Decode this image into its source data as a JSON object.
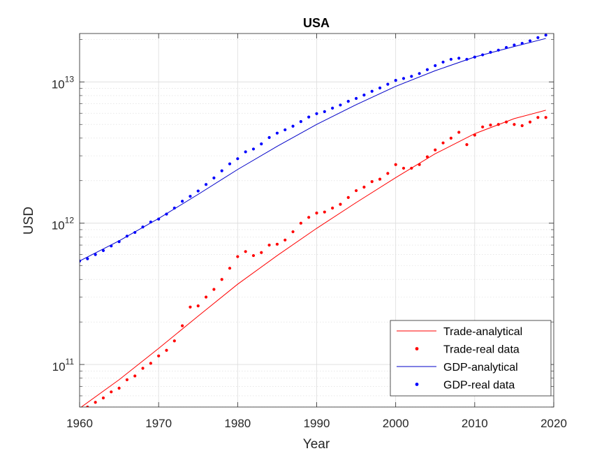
{
  "chart_data": {
    "type": "line",
    "title": "USA",
    "xlabel": "Year",
    "ylabel": "USD",
    "xlim": [
      1960,
      2020
    ],
    "ylim": [
      50000000000,
      22000000000000
    ],
    "yscale": "log",
    "grid": true,
    "minor_grid": true,
    "xticks": [
      1960,
      1970,
      1980,
      1990,
      2000,
      2010,
      2020
    ],
    "yticks": [
      {
        "value": 100000000000,
        "base": "10",
        "exp": "11"
      },
      {
        "value": 1000000000000,
        "base": "10",
        "exp": "12"
      },
      {
        "value": 10000000000000,
        "base": "10",
        "exp": "13"
      }
    ],
    "legend_position": "bottom-right",
    "series": [
      {
        "name": "Trade-analytical",
        "kind": "line",
        "color": "#ff0000",
        "x": [
          1960,
          1965,
          1970,
          1975,
          1980,
          1985,
          1990,
          1995,
          2000,
          2005,
          2010,
          2015,
          2019
        ],
        "y": [
          49000000000.0,
          78000000000.0,
          130000000000.0,
          220000000000.0,
          370000000000.0,
          590000000000.0,
          920000000000.0,
          1400000000000.0,
          2100000000000.0,
          3100000000000.0,
          4300000000000.0,
          5500000000000.0,
          6300000000000.0
        ]
      },
      {
        "name": "Trade-real data",
        "kind": "points",
        "color": "#ff0000",
        "x": [
          1960,
          1961,
          1962,
          1963,
          1964,
          1965,
          1966,
          1967,
          1968,
          1969,
          1970,
          1971,
          1972,
          1973,
          1974,
          1975,
          1976,
          1977,
          1978,
          1979,
          1980,
          1981,
          1982,
          1983,
          1984,
          1985,
          1986,
          1987,
          1988,
          1989,
          1990,
          1991,
          1992,
          1993,
          1994,
          1995,
          1996,
          1997,
          1998,
          1999,
          2000,
          2001,
          2002,
          2003,
          2004,
          2005,
          2006,
          2007,
          2008,
          2009,
          2010,
          2011,
          2012,
          2013,
          2014,
          2015,
          2016,
          2017,
          2018,
          2019
        ],
        "y": [
          49000000000.0,
          50000000000.0,
          54000000000.0,
          58000000000.0,
          64000000000.0,
          68000000000.0,
          78000000000.0,
          83000000000.0,
          94000000000.0,
          102000000000.0,
          115000000000.0,
          126000000000.0,
          147000000000.0,
          188000000000.0,
          255000000000.0,
          260000000000.0,
          300000000000.0,
          340000000000.0,
          400000000000.0,
          480000000000.0,
          580000000000.0,
          630000000000.0,
          590000000000.0,
          620000000000.0,
          700000000000.0,
          710000000000.0,
          760000000000.0,
          870000000000.0,
          1000000000000.0,
          1100000000000.0,
          1180000000000.0,
          1200000000000.0,
          1280000000000.0,
          1360000000000.0,
          1520000000000.0,
          1700000000000.0,
          1800000000000.0,
          1970000000000.0,
          2050000000000.0,
          2250000000000.0,
          2600000000000.0,
          2450000000000.0,
          2450000000000.0,
          2600000000000.0,
          2950000000000.0,
          3300000000000.0,
          3700000000000.0,
          4000000000000.0,
          4400000000000.0,
          3600000000000.0,
          4200000000000.0,
          4800000000000.0,
          4950000000000.0,
          5000000000000.0,
          5200000000000.0,
          5000000000000.0,
          4900000000000.0,
          5200000000000.0,
          5600000000000.0,
          5600000000000.0
        ]
      },
      {
        "name": "GDP-analytical",
        "kind": "line",
        "color": "#0000c8",
        "x": [
          1960,
          1965,
          1970,
          1975,
          1980,
          1985,
          1990,
          1995,
          2000,
          2005,
          2010,
          2015,
          2019
        ],
        "y": [
          540000000000.0,
          750000000000.0,
          1080000000000.0,
          1600000000000.0,
          2400000000000.0,
          3500000000000.0,
          5000000000000.0,
          6900000000000.0,
          9300000000000.0,
          12000000000000.0,
          15000000000000.0,
          17800000000000.0,
          20300000000000.0
        ]
      },
      {
        "name": "GDP-real data",
        "kind": "points",
        "color": "#0000ff",
        "x": [
          1960,
          1961,
          1962,
          1963,
          1964,
          1965,
          1966,
          1967,
          1968,
          1969,
          1970,
          1971,
          1972,
          1973,
          1974,
          1975,
          1976,
          1977,
          1978,
          1979,
          1980,
          1981,
          1982,
          1983,
          1984,
          1985,
          1986,
          1987,
          1988,
          1989,
          1990,
          1991,
          1992,
          1993,
          1994,
          1995,
          1996,
          1997,
          1998,
          1999,
          2000,
          2001,
          2002,
          2003,
          2004,
          2005,
          2006,
          2007,
          2008,
          2009,
          2010,
          2011,
          2012,
          2013,
          2014,
          2015,
          2016,
          2017,
          2018,
          2019
        ],
        "y": [
          540000000000.0,
          560000000000.0,
          600000000000.0,
          640000000000.0,
          690000000000.0,
          740000000000.0,
          810000000000.0,
          860000000000.0,
          940000000000.0,
          1020000000000.0,
          1070000000000.0,
          1160000000000.0,
          1280000000000.0,
          1430000000000.0,
          1550000000000.0,
          1690000000000.0,
          1880000000000.0,
          2090000000000.0,
          2350000000000.0,
          2630000000000.0,
          2860000000000.0,
          3200000000000.0,
          3350000000000.0,
          3640000000000.0,
          4040000000000.0,
          4340000000000.0,
          4580000000000.0,
          4860000000000.0,
          5240000000000.0,
          5640000000000.0,
          5960000000000.0,
          6160000000000.0,
          6520000000000.0,
          6860000000000.0,
          7290000000000.0,
          7640000000000.0,
          8070000000000.0,
          8580000000000.0,
          9060000000000.0,
          9630000000000.0,
          10250000000000.0,
          10580000000000.0,
          10940000000000.0,
          11460000000000.0,
          12210000000000.0,
          13040000000000.0,
          13810000000000.0,
          14450000000000.0,
          14710000000000.0,
          14450000000000.0,
          14990000000000.0,
          15540000000000.0,
          16200000000000.0,
          16780000000000.0,
          17530000000000.0,
          18240000000000.0,
          18750000000000.0,
          19540000000000.0,
          20580000000000.0,
          21430000000000.0
        ]
      }
    ]
  }
}
